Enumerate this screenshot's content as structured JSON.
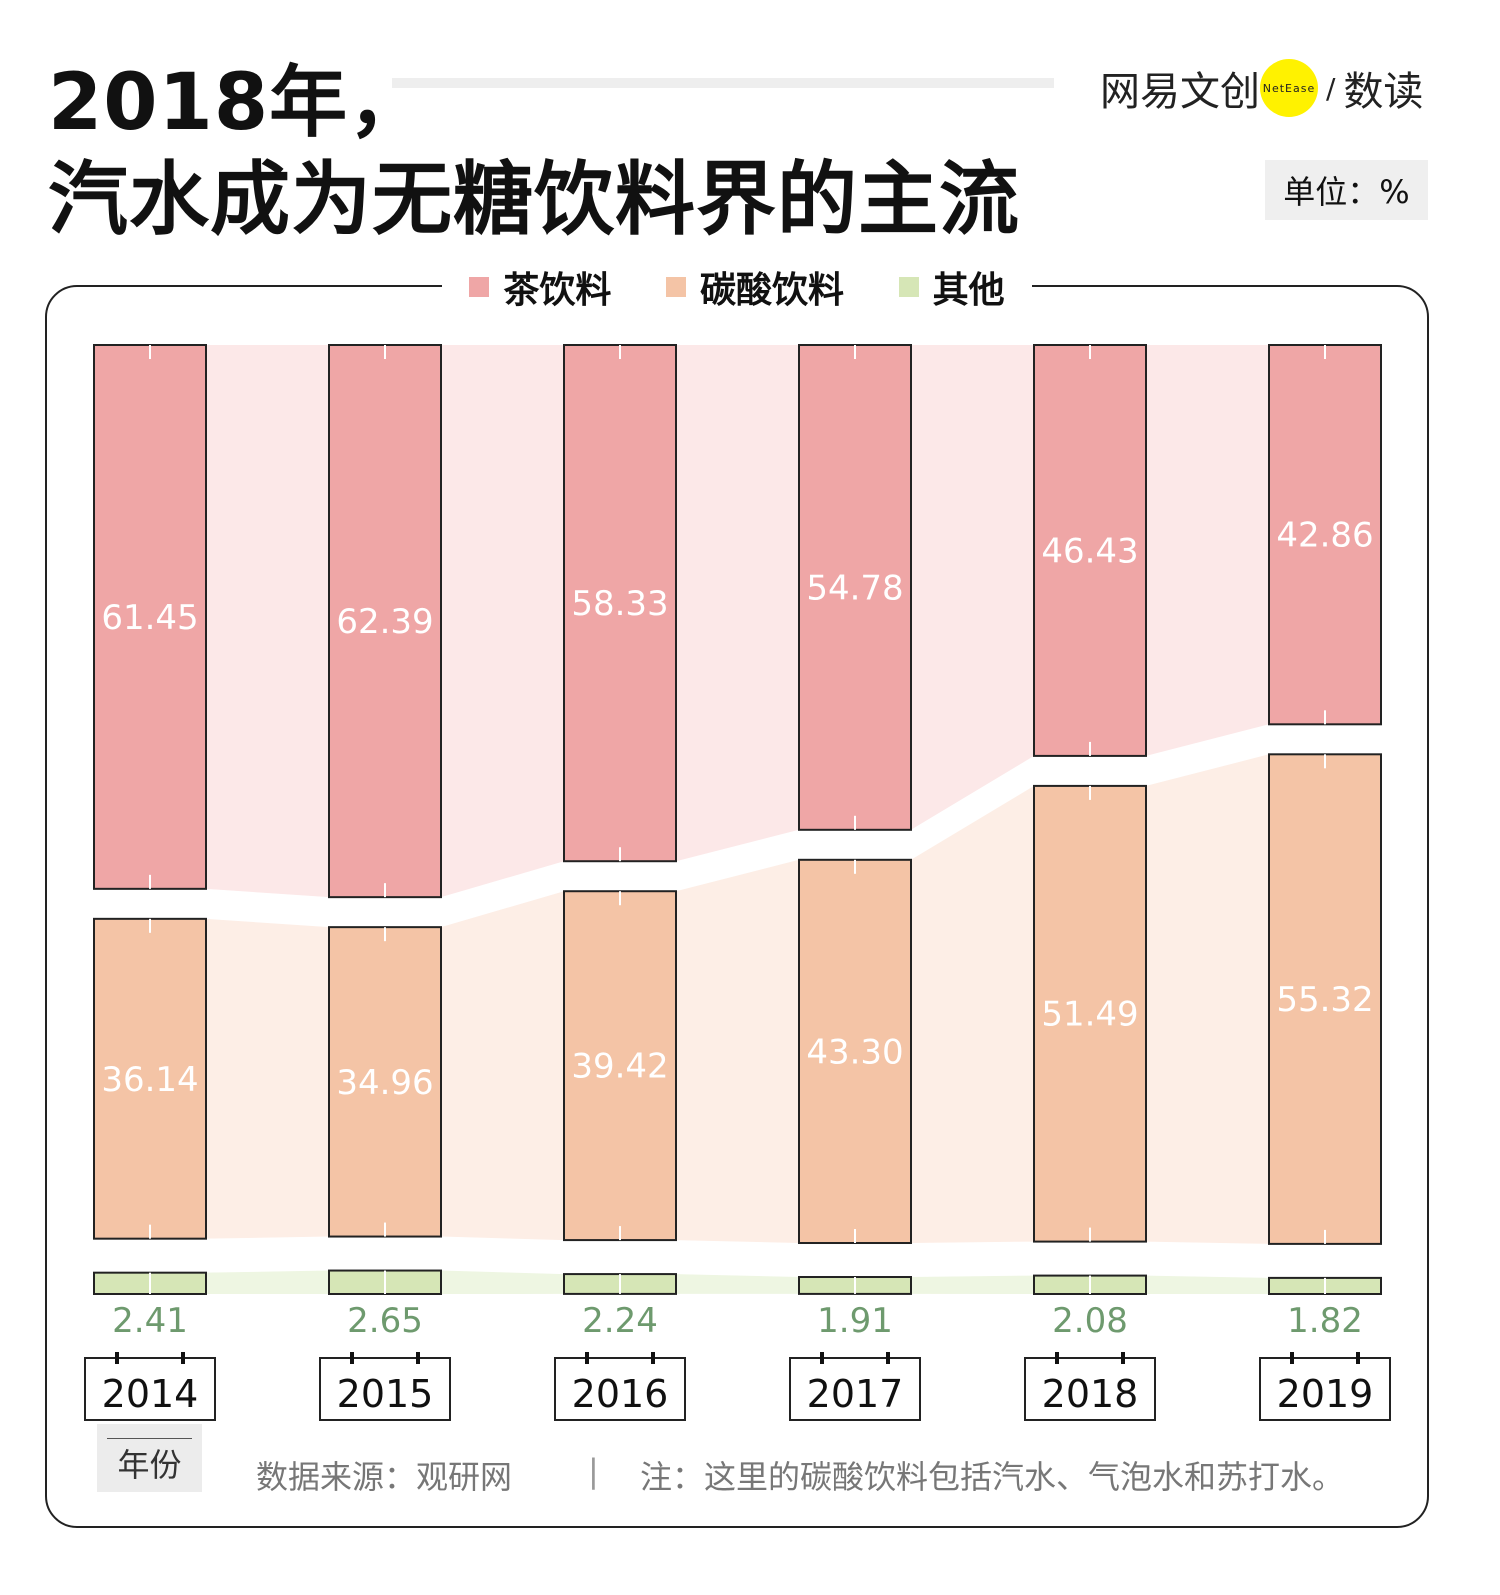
{
  "title_line1": "2018年，",
  "title_line2": "汽水成为无糖饮料界的主流",
  "logo": {
    "brand": "网易文创",
    "badge": "NetEase",
    "sep": "/",
    "product": "数读"
  },
  "unit_label": "单位：%",
  "footer": {
    "axis_label": "年份",
    "source": "数据来源：观研网",
    "divider": "|",
    "note": "注：这里的碳酸饮料包括汽水、气泡水和苏打水。"
  },
  "chart_data": {
    "type": "bar",
    "stacked": true,
    "categories": [
      "2014",
      "2015",
      "2016",
      "2017",
      "2018",
      "2019"
    ],
    "series": [
      {
        "name": "茶饮料",
        "values": [
          61.45,
          62.39,
          58.33,
          54.78,
          46.43,
          42.86
        ],
        "color": "#EFA6A6",
        "band": "#FCE8E8",
        "label_color": "#ffffff"
      },
      {
        "name": "碳酸饮料",
        "values": [
          36.14,
          34.96,
          39.42,
          43.3,
          51.49,
          55.32
        ],
        "color": "#F4C4A6",
        "band": "#FDEEE6",
        "label_color": "#ffffff"
      },
      {
        "name": "其他",
        "values": [
          2.41,
          2.65,
          2.24,
          1.91,
          2.08,
          1.82
        ],
        "color": "#D6E6B6",
        "band": "#EEF6E2",
        "label_color": "#6E9A6E"
      }
    ],
    "value_labels": [
      [
        "61.45",
        "62.39",
        "58.33",
        "54.78",
        "46.43",
        "42.86"
      ],
      [
        "36.14",
        "34.96",
        "39.42",
        "43.30",
        "51.49",
        "55.32"
      ],
      [
        "2.41",
        "2.65",
        "2.24",
        "1.91",
        "2.08",
        "1.82"
      ]
    ],
    "legend": "top",
    "grid": false
  }
}
